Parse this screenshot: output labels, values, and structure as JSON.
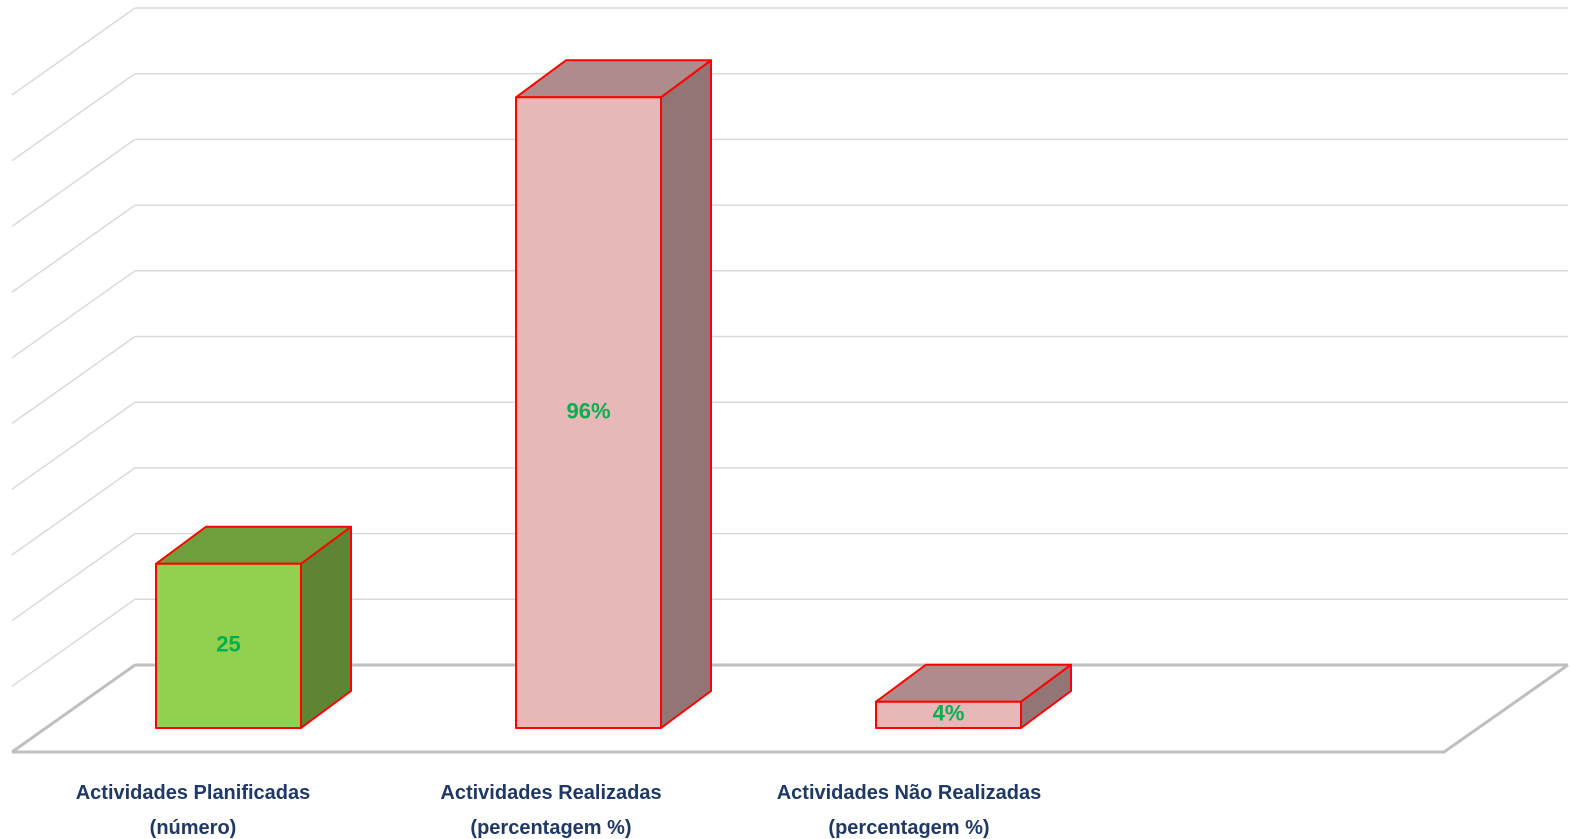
{
  "chart_data": {
    "type": "bar3d",
    "categories": [
      "Actividades Planificadas\n(número)",
      "Actividades Realizadas\n(percentagem %)",
      "Actividades Não Realizadas\n(percentagem %)"
    ],
    "values": [
      25,
      96,
      4
    ],
    "value_labels": [
      "25",
      "96%",
      "4%"
    ],
    "colors": [
      "#92d050",
      "#e8b7b7",
      "#e8b7b7"
    ],
    "ylim": [
      0,
      100
    ],
    "yticks": [
      0,
      10,
      20,
      30,
      40,
      50,
      60,
      70,
      80,
      90,
      100
    ],
    "grid": true
  }
}
